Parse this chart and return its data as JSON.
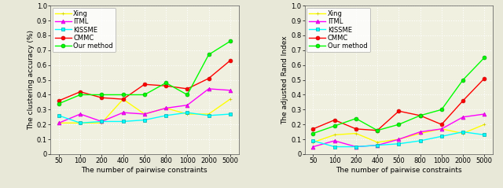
{
  "x": [
    50,
    100,
    200,
    400,
    500,
    800,
    1000,
    2000,
    5000
  ],
  "left_ylabel": "The clustering accuracy (%)",
  "right_ylabel": "The adjusted Rand Index",
  "xlabel": "The number of pairwise constraints",
  "ylim": [
    0,
    1.0
  ],
  "yticks": [
    0,
    0.1,
    0.2,
    0.3,
    0.4,
    0.5,
    0.6,
    0.7,
    0.8,
    0.9,
    1.0
  ],
  "series": {
    "Xing": {
      "color": "#ffff00",
      "marker": "+",
      "mec": "#cccc00",
      "left_y": [
        0.21,
        0.21,
        0.21,
        0.37,
        0.27,
        0.31,
        0.27,
        0.27,
        0.37
      ],
      "right_y": [
        0.08,
        0.13,
        0.14,
        0.08,
        0.1,
        0.14,
        0.17,
        0.14,
        0.2
      ]
    },
    "ITML": {
      "color": "#ff00ff",
      "marker": "^",
      "mec": "#cc00cc",
      "left_y": [
        0.21,
        0.27,
        0.22,
        0.28,
        0.27,
        0.31,
        0.33,
        0.44,
        0.43
      ],
      "right_y": [
        0.05,
        0.09,
        0.05,
        0.06,
        0.1,
        0.15,
        0.17,
        0.25,
        0.27
      ]
    },
    "KISSME": {
      "color": "#00ffff",
      "marker": "s",
      "mec": "#00aaaa",
      "left_y": [
        0.26,
        0.21,
        0.22,
        0.22,
        0.23,
        0.26,
        0.28,
        0.26,
        0.27
      ],
      "right_y": [
        0.09,
        0.05,
        0.05,
        0.06,
        0.07,
        0.09,
        0.12,
        0.15,
        0.13
      ]
    },
    "CMMC": {
      "color": "#ff0000",
      "marker": "o",
      "mec": "#cc0000",
      "left_y": [
        0.36,
        0.42,
        0.38,
        0.37,
        0.47,
        0.46,
        0.44,
        0.51,
        0.63
      ],
      "right_y": [
        0.17,
        0.23,
        0.17,
        0.16,
        0.29,
        0.26,
        0.2,
        0.36,
        0.51
      ]
    },
    "Our method": {
      "color": "#00ff00",
      "marker": "o",
      "mec": "#00aa00",
      "left_y": [
        0.34,
        0.4,
        0.4,
        0.4,
        0.4,
        0.48,
        0.4,
        0.67,
        0.76
      ],
      "right_y": [
        0.14,
        0.19,
        0.24,
        0.16,
        0.2,
        0.26,
        0.3,
        0.5,
        0.65
      ]
    }
  },
  "xtick_labels": [
    "50",
    "100",
    "200",
    "400",
    "500",
    "800",
    "1000",
    "2000",
    "5000"
  ],
  "figure_facecolor": "#e8e8d8",
  "axes_facecolor": "#f0f0e0",
  "grid_color": "#ffffff",
  "grid_linestyle": ":",
  "fontsize_label": 6.5,
  "fontsize_tick": 6,
  "fontsize_legend": 6,
  "linewidth": 1.0,
  "markersize": 3.5
}
